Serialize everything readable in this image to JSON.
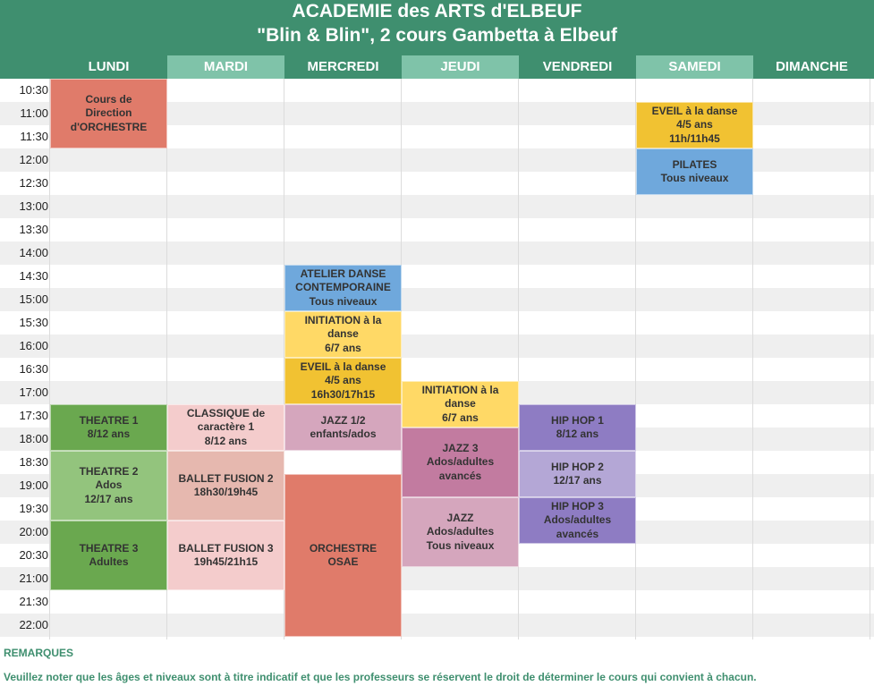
{
  "header": {
    "title_line1": "ACADEMIE des ARTS d'ELBEUF",
    "title_line2": "\"Blin & Blin\", 2 cours Gambetta à Elbeuf"
  },
  "days": [
    "LUNDI",
    "MARDI",
    "MERCREDI",
    "JEUDI",
    "VENDREDI",
    "SAMEDI",
    "DIMANCHE"
  ],
  "times": [
    "10:30",
    "11:00",
    "11:30",
    "12:00",
    "12:30",
    "13:00",
    "13:30",
    "14:00",
    "14:30",
    "15:00",
    "15:30",
    "16:00",
    "16:30",
    "17:00",
    "17:30",
    "18:00",
    "18:30",
    "19:00",
    "19:30",
    "20:00",
    "20:30",
    "21:00",
    "21:30",
    "22:00"
  ],
  "colors": {
    "header": "#3f8f6f",
    "header_alt": "#7fc3a9",
    "salmon": "#e07b6a",
    "green_dark": "#6aa84f",
    "green_light": "#93c47d",
    "pink_light": "#f4cccc",
    "pink_mid": "#e6b8af",
    "blue": "#6fa8dc",
    "yellow": "#f1c232",
    "yellow_light": "#ffd966",
    "mauve_light": "#d5a6bd",
    "mauve_dark": "#c27ba0",
    "purple": "#8e7cc3",
    "purple_light": "#b4a7d6"
  },
  "courses": [
    {
      "day": 0,
      "start": "10:30",
      "end": "12:00",
      "color": "salmon",
      "lines": [
        "Cours de",
        "Direction",
        "d'ORCHESTRE"
      ]
    },
    {
      "day": 0,
      "start": "17:30",
      "end": "18:30",
      "color": "green_dark",
      "lines": [
        "THEATRE 1",
        "8/12 ans"
      ]
    },
    {
      "day": 0,
      "start": "18:30",
      "end": "20:00",
      "color": "green_light",
      "lines": [
        "THEATRE 2",
        "Ados",
        "12/17 ans"
      ]
    },
    {
      "day": 0,
      "start": "20:00",
      "end": "21:30",
      "color": "green_dark",
      "lines": [
        "THEATRE 3",
        "Adultes"
      ]
    },
    {
      "day": 1,
      "start": "17:30",
      "end": "18:30",
      "color": "pink_light",
      "lines": [
        "CLASSIQUE de",
        "caractère 1",
        "8/12 ans"
      ]
    },
    {
      "day": 1,
      "start": "18:30",
      "end": "20:00",
      "color": "pink_mid",
      "lines": [
        "BALLET FUSION 2",
        "18h30/19h45"
      ]
    },
    {
      "day": 1,
      "start": "20:00",
      "end": "21:30",
      "color": "pink_light",
      "lines": [
        "BALLET FUSION 3",
        "19h45/21h15"
      ]
    },
    {
      "day": 2,
      "start": "14:30",
      "end": "15:30",
      "color": "blue",
      "lines": [
        "ATELIER DANSE",
        "CONTEMPORAINE",
        "Tous niveaux"
      ]
    },
    {
      "day": 2,
      "start": "15:30",
      "end": "16:30",
      "color": "yellow_light",
      "lines": [
        "INITIATION à la",
        "danse",
        "6/7 ans"
      ]
    },
    {
      "day": 2,
      "start": "16:30",
      "end": "17:30",
      "color": "yellow",
      "lines": [
        "EVEIL à la danse",
        "4/5 ans",
        "16h30/17h15"
      ]
    },
    {
      "day": 2,
      "start": "17:30",
      "end": "18:30",
      "color": "mauve_light",
      "lines": [
        "JAZZ 1/2",
        "enfants/ados"
      ]
    },
    {
      "day": 2,
      "start": "19:00",
      "end": "22:30",
      "color": "salmon",
      "lines": [
        "ORCHESTRE",
        "OSAE"
      ]
    },
    {
      "day": 3,
      "start": "17:00",
      "end": "18:00",
      "color": "yellow_light",
      "lines": [
        "INITIATION à la",
        "danse",
        "6/7 ans"
      ]
    },
    {
      "day": 3,
      "start": "18:00",
      "end": "19:30",
      "color": "mauve_dark",
      "lines": [
        "JAZZ 3",
        "Ados/adultes",
        "avancés"
      ]
    },
    {
      "day": 3,
      "start": "19:30",
      "end": "21:00",
      "color": "mauve_light",
      "lines": [
        "JAZZ",
        "Ados/adultes",
        "Tous niveaux"
      ]
    },
    {
      "day": 4,
      "start": "17:30",
      "end": "18:30",
      "color": "purple",
      "lines": [
        "HIP HOP 1",
        "8/12 ans"
      ]
    },
    {
      "day": 4,
      "start": "18:30",
      "end": "19:30",
      "color": "purple_light",
      "lines": [
        "HIP HOP 2",
        "12/17 ans"
      ]
    },
    {
      "day": 4,
      "start": "19:30",
      "end": "20:30",
      "color": "purple",
      "lines": [
        "HIP HOP 3",
        "Ados/adultes",
        "avancés"
      ]
    },
    {
      "day": 5,
      "start": "11:00",
      "end": "12:00",
      "color": "yellow",
      "lines": [
        "EVEIL à la danse",
        "4/5 ans",
        "11h/11h45"
      ]
    },
    {
      "day": 5,
      "start": "12:00",
      "end": "13:00",
      "color": "blue",
      "lines": [
        "PILATES",
        "Tous niveaux"
      ]
    }
  ],
  "remarks": {
    "title": "REMARQUES",
    "text": "Veuillez noter que les âges et niveaux sont à titre indicatif et que les professeurs se réservent le droit de déterminer le cours qui convient à chacun."
  }
}
